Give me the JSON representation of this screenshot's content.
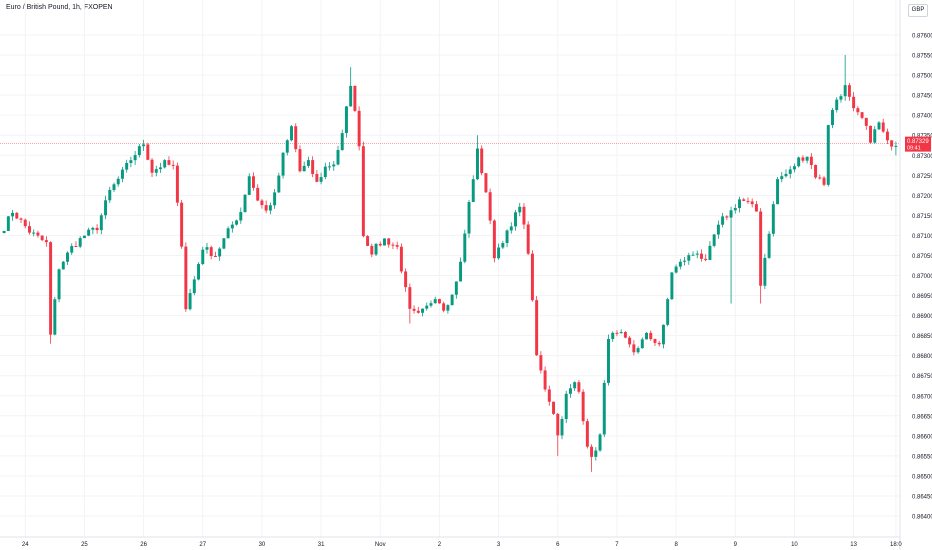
{
  "header": {
    "title": "Euro / British Pound, 1h, FXOPEN"
  },
  "price_axis": {
    "currency_label": "GBP"
  },
  "last_price": {
    "value": "0.87329",
    "countdown": "09:41",
    "color": "#f23645"
  },
  "colors": {
    "up": "#089981",
    "down": "#f23645",
    "grid": "#f2f3f5",
    "axis_text": "#131722"
  },
  "chart_data": {
    "type": "candlestick",
    "title": "Euro / British Pound, 1h, FXOPEN",
    "y_axis": {
      "ylim": [
        0.8638,
        0.8768
      ],
      "ticks": [
        "0.87600",
        "0.87550",
        "0.87500",
        "0.87450",
        "0.87400",
        "0.87350",
        "0.87300",
        "0.87250",
        "0.87200",
        "0.87150",
        "0.87100",
        "0.87050",
        "0.87000",
        "0.86950",
        "0.86900",
        "0.86850",
        "0.86800",
        "0.86750",
        "0.86700",
        "0.86650",
        "0.86600",
        "0.86550",
        "0.86500",
        "0.86450",
        "0.86400"
      ],
      "position": "right"
    },
    "x_axis": {
      "ticks": [
        {
          "label": "24",
          "index": 5
        },
        {
          "label": "25",
          "index": 19
        },
        {
          "label": "26",
          "index": 33
        },
        {
          "label": "27",
          "index": 47
        },
        {
          "label": "30",
          "index": 61
        },
        {
          "label": "31",
          "index": 75
        },
        {
          "label": "Nov",
          "index": 89
        },
        {
          "label": "2",
          "index": 103
        },
        {
          "label": "3",
          "index": 117
        },
        {
          "label": "6",
          "index": 131
        },
        {
          "label": "7",
          "index": 145
        },
        {
          "label": "8",
          "index": 159
        },
        {
          "label": "9",
          "index": 173
        },
        {
          "label": "10",
          "index": 187
        },
        {
          "label": "13",
          "index": 201
        },
        {
          "label": "18:0",
          "index": 211
        }
      ]
    },
    "grid": true,
    "last_price_line": 0.87329,
    "anchors": [
      [
        0,
        0.8712
      ],
      [
        2,
        0.8716
      ],
      [
        6,
        0.8711
      ],
      [
        10,
        0.8708
      ],
      [
        11,
        0.8685
      ],
      [
        13,
        0.8702
      ],
      [
        16,
        0.8707
      ],
      [
        19,
        0.871
      ],
      [
        22,
        0.8712
      ],
      [
        25,
        0.8721
      ],
      [
        27,
        0.8724
      ],
      [
        30,
        0.8729
      ],
      [
        33,
        0.8733
      ],
      [
        35,
        0.8726
      ],
      [
        38,
        0.8728
      ],
      [
        40,
        0.8727
      ],
      [
        42,
        0.8708
      ],
      [
        43,
        0.8692
      ],
      [
        45,
        0.8699
      ],
      [
        47,
        0.8707
      ],
      [
        50,
        0.8705
      ],
      [
        53,
        0.8711
      ],
      [
        56,
        0.8716
      ],
      [
        58,
        0.8725
      ],
      [
        60,
        0.8719
      ],
      [
        62,
        0.8716
      ],
      [
        64,
        0.872
      ],
      [
        66,
        0.873
      ],
      [
        68,
        0.8737
      ],
      [
        70,
        0.8726
      ],
      [
        72,
        0.8728
      ],
      [
        74,
        0.8723
      ],
      [
        76,
        0.8727
      ],
      [
        78,
        0.8728
      ],
      [
        80,
        0.8735
      ],
      [
        82,
        0.8748
      ],
      [
        84,
        0.8733
      ],
      [
        85,
        0.871
      ],
      [
        87,
        0.8706
      ],
      [
        90,
        0.8709
      ],
      [
        93,
        0.8707
      ],
      [
        96,
        0.8691
      ],
      [
        98,
        0.869
      ],
      [
        100,
        0.8692
      ],
      [
        102,
        0.8695
      ],
      [
        104,
        0.8692
      ],
      [
        106,
        0.8695
      ],
      [
        108,
        0.8703
      ],
      [
        110,
        0.8718
      ],
      [
        112,
        0.8731
      ],
      [
        114,
        0.8721
      ],
      [
        116,
        0.8705
      ],
      [
        118,
        0.8709
      ],
      [
        120,
        0.8712
      ],
      [
        122,
        0.8718
      ],
      [
        124,
        0.8706
      ],
      [
        126,
        0.868
      ],
      [
        128,
        0.8672
      ],
      [
        130,
        0.8666
      ],
      [
        131,
        0.866
      ],
      [
        133,
        0.867
      ],
      [
        135,
        0.8673
      ],
      [
        136,
        0.8671
      ],
      [
        138,
        0.8658
      ],
      [
        139,
        0.8654
      ],
      [
        141,
        0.866
      ],
      [
        143,
        0.8685
      ],
      [
        146,
        0.8685
      ],
      [
        149,
        0.8681
      ],
      [
        152,
        0.8685
      ],
      [
        155,
        0.8683
      ],
      [
        156,
        0.8687
      ],
      [
        158,
        0.8701
      ],
      [
        161,
        0.8704
      ],
      [
        164,
        0.8706
      ],
      [
        166,
        0.8703
      ],
      [
        168,
        0.871
      ],
      [
        170,
        0.8714
      ],
      [
        172,
        0.8716
      ],
      [
        174,
        0.8719
      ],
      [
        176,
        0.8718
      ],
      [
        178,
        0.8716
      ],
      [
        179,
        0.8698
      ],
      [
        181,
        0.8711
      ],
      [
        183,
        0.8724
      ],
      [
        186,
        0.8726
      ],
      [
        188,
        0.8729
      ],
      [
        190,
        0.873
      ],
      [
        192,
        0.8725
      ],
      [
        194,
        0.8723
      ],
      [
        195,
        0.8738
      ],
      [
        197,
        0.8744
      ],
      [
        199,
        0.8747
      ],
      [
        201,
        0.8741
      ],
      [
        203,
        0.8739
      ],
      [
        205,
        0.8734
      ],
      [
        207,
        0.8738
      ],
      [
        209,
        0.8733
      ],
      [
        211,
        0.8733
      ]
    ],
    "extremes": [
      [
        11,
        0.8683
      ],
      [
        43,
        0.8691
      ],
      [
        82,
        0.8752
      ],
      [
        96,
        0.8688
      ],
      [
        112,
        0.8735
      ],
      [
        131,
        0.8655
      ],
      [
        139,
        0.8651
      ],
      [
        172,
        0.8693
      ],
      [
        179,
        0.8693
      ],
      [
        199,
        0.8755
      ],
      [
        211,
        0.873
      ]
    ]
  }
}
